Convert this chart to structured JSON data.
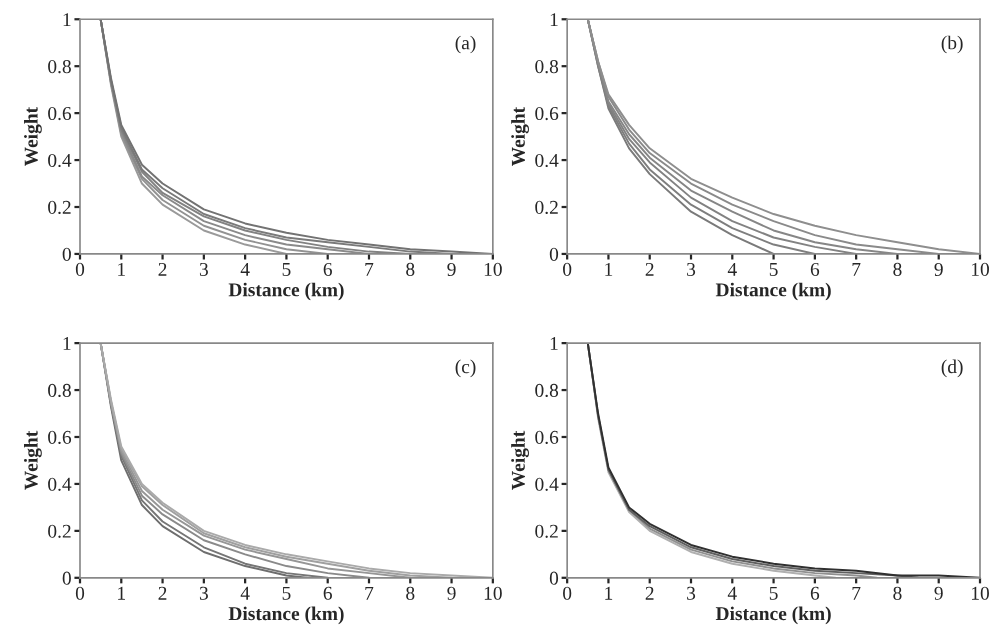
{
  "chart_data": [
    {
      "type": "line",
      "xlabel": "Distance (km)",
      "ylabel": "Weight",
      "annotations": [
        "(a)"
      ],
      "xlim": [
        0,
        10
      ],
      "ylim": [
        0,
        1
      ],
      "xticks": [
        0,
        1,
        2,
        3,
        4,
        5,
        6,
        7,
        8,
        9,
        10
      ],
      "yticks": [
        0,
        0.2,
        0.4,
        0.6,
        0.8,
        1
      ],
      "grid": false,
      "series": [
        {
          "color": "#9a9a9a",
          "x": [
            0.5,
            0.75,
            1,
            1.5,
            2,
            3,
            4,
            5
          ],
          "values": [
            1,
            0.72,
            0.5,
            0.3,
            0.21,
            0.1,
            0.04,
            0
          ]
        },
        {
          "color": "#929292",
          "x": [
            0.5,
            0.75,
            1,
            1.5,
            2,
            3,
            4,
            5,
            6
          ],
          "values": [
            1,
            0.73,
            0.51,
            0.32,
            0.23,
            0.12,
            0.06,
            0.02,
            0
          ]
        },
        {
          "color": "#8a8a8a",
          "x": [
            0.5,
            0.75,
            1,
            1.5,
            2,
            3,
            4,
            5,
            6,
            7
          ],
          "values": [
            1,
            0.73,
            0.52,
            0.33,
            0.25,
            0.14,
            0.08,
            0.04,
            0.02,
            0
          ]
        },
        {
          "color": "#828282",
          "x": [
            0.5,
            0.75,
            1,
            1.5,
            2,
            3,
            4,
            5,
            6,
            7,
            8
          ],
          "values": [
            1,
            0.74,
            0.53,
            0.35,
            0.26,
            0.16,
            0.1,
            0.06,
            0.03,
            0.01,
            0
          ]
        },
        {
          "color": "#7a7a7a",
          "x": [
            0.5,
            0.75,
            1,
            1.5,
            2,
            3,
            4,
            5,
            6,
            7,
            8,
            9
          ],
          "values": [
            1,
            0.74,
            0.54,
            0.36,
            0.28,
            0.17,
            0.11,
            0.07,
            0.05,
            0.03,
            0.01,
            0
          ]
        },
        {
          "color": "#727272",
          "x": [
            0.5,
            0.75,
            1,
            1.5,
            2,
            3,
            4,
            5,
            6,
            7,
            8,
            9,
            10
          ],
          "values": [
            1,
            0.75,
            0.55,
            0.38,
            0.3,
            0.19,
            0.13,
            0.09,
            0.06,
            0.04,
            0.02,
            0.01,
            0
          ]
        }
      ]
    },
    {
      "type": "line",
      "xlabel": "Distance (km)",
      "ylabel": "Weight",
      "annotations": [
        "(b)"
      ],
      "xlim": [
        0,
        10
      ],
      "ylim": [
        0,
        1
      ],
      "xticks": [
        0,
        1,
        2,
        3,
        4,
        5,
        6,
        7,
        8,
        9,
        10
      ],
      "yticks": [
        0,
        0.2,
        0.4,
        0.6,
        0.8,
        1
      ],
      "grid": false,
      "series": [
        {
          "color": "#7a7a7a",
          "x": [
            0.5,
            0.75,
            1,
            1.5,
            2,
            3,
            4,
            5
          ],
          "values": [
            1,
            0.8,
            0.62,
            0.45,
            0.34,
            0.18,
            0.08,
            0
          ]
        },
        {
          "color": "#7e7e7e",
          "x": [
            0.5,
            0.75,
            1,
            1.5,
            2,
            3,
            4,
            5,
            6
          ],
          "values": [
            1,
            0.8,
            0.63,
            0.47,
            0.36,
            0.21,
            0.11,
            0.04,
            0
          ]
        },
        {
          "color": "#828282",
          "x": [
            0.5,
            0.75,
            1,
            1.5,
            2,
            3,
            4,
            5,
            6,
            7
          ],
          "values": [
            1,
            0.81,
            0.64,
            0.49,
            0.39,
            0.24,
            0.14,
            0.07,
            0.03,
            0
          ]
        },
        {
          "color": "#868686",
          "x": [
            0.5,
            0.75,
            1,
            1.5,
            2,
            3,
            4,
            5,
            6,
            7,
            8
          ],
          "values": [
            1,
            0.81,
            0.65,
            0.51,
            0.41,
            0.27,
            0.18,
            0.1,
            0.05,
            0.02,
            0
          ]
        },
        {
          "color": "#8a8a8a",
          "x": [
            0.5,
            0.75,
            1,
            1.5,
            2,
            3,
            4,
            5,
            6,
            7,
            8,
            9
          ],
          "values": [
            1,
            0.82,
            0.67,
            0.53,
            0.43,
            0.3,
            0.21,
            0.14,
            0.08,
            0.04,
            0.02,
            0
          ]
        },
        {
          "color": "#8e8e8e",
          "x": [
            0.5,
            0.75,
            1,
            1.5,
            2,
            3,
            4,
            5,
            6,
            7,
            8,
            9,
            10
          ],
          "values": [
            1,
            0.82,
            0.68,
            0.55,
            0.45,
            0.32,
            0.24,
            0.17,
            0.12,
            0.08,
            0.05,
            0.02,
            0
          ]
        }
      ]
    },
    {
      "type": "line",
      "xlabel": "Distance (km)",
      "ylabel": "Weight",
      "annotations": [
        "(c)"
      ],
      "xlim": [
        0,
        10
      ],
      "ylim": [
        0,
        1
      ],
      "xticks": [
        0,
        1,
        2,
        3,
        4,
        5,
        6,
        7,
        8,
        9,
        10
      ],
      "yticks": [
        0,
        0.2,
        0.4,
        0.6,
        0.8,
        1
      ],
      "grid": false,
      "series": [
        {
          "color": "#6e6e6e",
          "x": [
            0.5,
            0.75,
            1,
            1.5,
            2,
            3,
            4,
            5,
            5.5
          ],
          "values": [
            1,
            0.73,
            0.5,
            0.31,
            0.22,
            0.11,
            0.05,
            0.01,
            0
          ]
        },
        {
          "color": "#767676",
          "x": [
            0.5,
            0.75,
            1,
            1.5,
            2,
            3,
            4,
            5,
            6
          ],
          "values": [
            1,
            0.74,
            0.52,
            0.33,
            0.24,
            0.13,
            0.06,
            0.02,
            0
          ]
        },
        {
          "color": "#8a8a8a",
          "x": [
            0.5,
            0.75,
            1,
            1.5,
            2,
            3,
            4,
            5,
            6,
            7
          ],
          "values": [
            1,
            0.74,
            0.53,
            0.35,
            0.27,
            0.16,
            0.1,
            0.05,
            0.02,
            0
          ]
        },
        {
          "color": "#969696",
          "x": [
            0.5,
            0.75,
            1,
            1.5,
            2,
            3,
            4,
            5,
            6,
            7,
            8
          ],
          "values": [
            1,
            0.75,
            0.54,
            0.37,
            0.29,
            0.18,
            0.12,
            0.08,
            0.04,
            0.02,
            0
          ]
        },
        {
          "color": "#a0a0a0",
          "x": [
            0.5,
            0.75,
            1,
            1.5,
            2,
            3,
            4,
            5,
            6,
            7,
            8,
            9
          ],
          "values": [
            1,
            0.75,
            0.55,
            0.39,
            0.31,
            0.19,
            0.13,
            0.09,
            0.06,
            0.03,
            0.01,
            0
          ]
        },
        {
          "color": "#aaaaaa",
          "x": [
            0.5,
            0.75,
            1,
            1.5,
            2,
            3,
            4,
            5,
            6,
            7,
            8,
            9,
            10
          ],
          "values": [
            1,
            0.76,
            0.56,
            0.4,
            0.32,
            0.2,
            0.14,
            0.1,
            0.07,
            0.04,
            0.02,
            0.01,
            0
          ]
        }
      ]
    },
    {
      "type": "line",
      "xlabel": "Distance (km)",
      "ylabel": "Weight",
      "annotations": [
        "(d)"
      ],
      "xlim": [
        0,
        10
      ],
      "ylim": [
        0,
        1
      ],
      "xticks": [
        0,
        1,
        2,
        3,
        4,
        5,
        6,
        7,
        8,
        9,
        10
      ],
      "yticks": [
        0,
        0.2,
        0.4,
        0.6,
        0.8,
        1
      ],
      "grid": false,
      "series": [
        {
          "color": "#b0b0b0",
          "x": [
            0.5,
            0.75,
            1,
            1.5,
            2,
            3,
            4,
            5,
            6,
            6.5
          ],
          "values": [
            1,
            0.68,
            0.45,
            0.28,
            0.2,
            0.11,
            0.06,
            0.03,
            0.01,
            0
          ]
        },
        {
          "color": "#909090",
          "x": [
            0.5,
            0.75,
            1,
            1.5,
            2,
            3,
            4,
            5,
            6,
            7,
            7.5
          ],
          "values": [
            1,
            0.69,
            0.46,
            0.29,
            0.21,
            0.12,
            0.07,
            0.04,
            0.02,
            0.01,
            0
          ]
        },
        {
          "color": "#606060",
          "x": [
            0.5,
            0.75,
            1,
            1.5,
            2,
            3,
            4,
            5,
            6,
            7,
            8,
            8.5
          ],
          "values": [
            1,
            0.69,
            0.46,
            0.29,
            0.22,
            0.13,
            0.08,
            0.05,
            0.03,
            0.02,
            0.01,
            0
          ]
        },
        {
          "color": "#303030",
          "x": [
            0.5,
            0.75,
            1,
            1.5,
            2,
            3,
            4,
            5,
            6,
            7,
            8,
            9,
            10
          ],
          "values": [
            1,
            0.7,
            0.47,
            0.3,
            0.23,
            0.14,
            0.09,
            0.06,
            0.04,
            0.03,
            0.01,
            0.01,
            0
          ]
        }
      ]
    }
  ]
}
